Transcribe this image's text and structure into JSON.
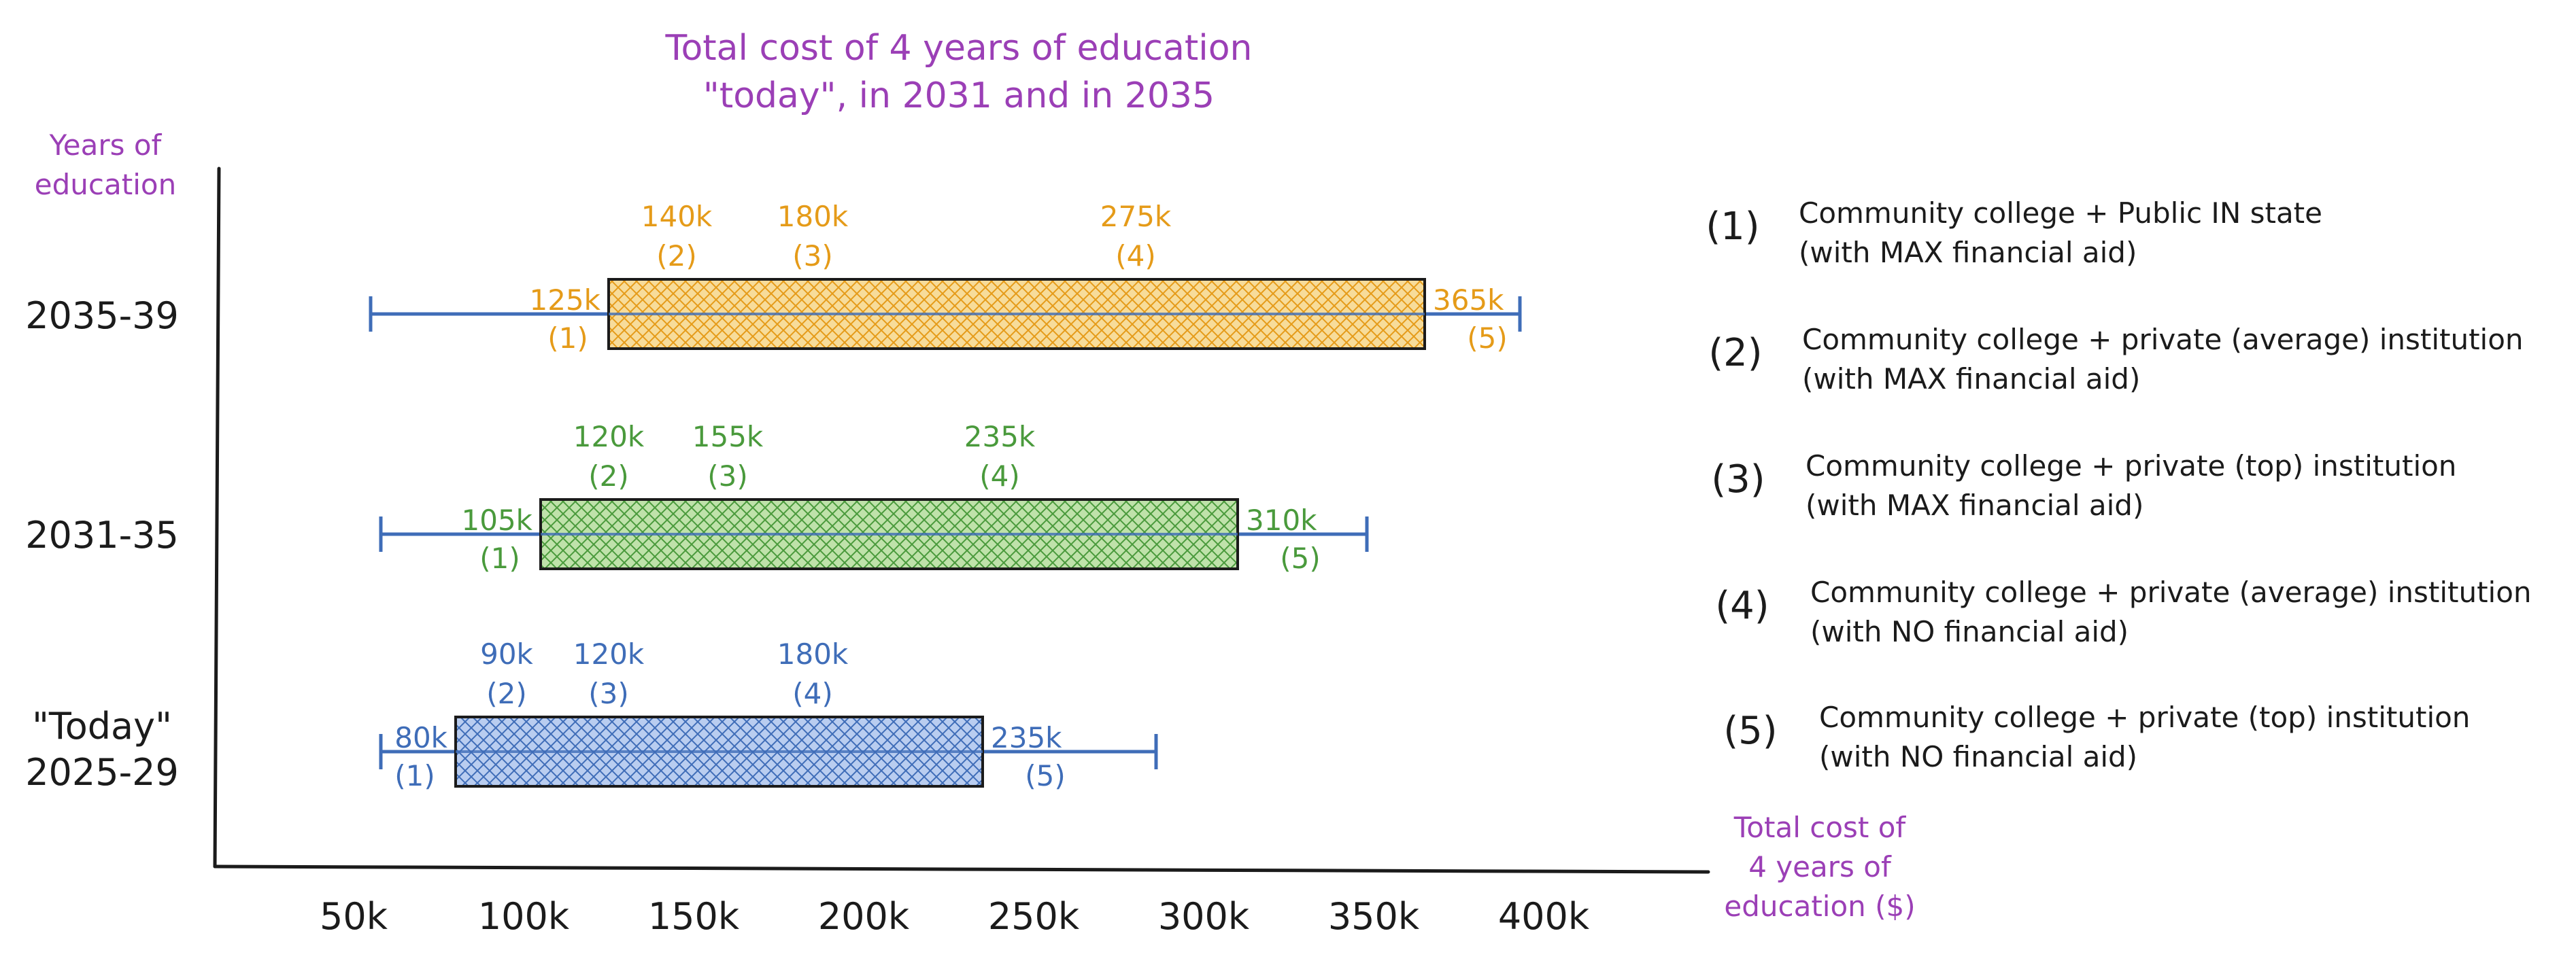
{
  "chart_data": {
    "type": "box",
    "title_lines": [
      "Total cost of 4 years of education",
      "\"today\", in 2031 and in 2035"
    ],
    "ylabel_lines": [
      "Years of",
      "education"
    ],
    "xlabel_lines": [
      "Total cost of",
      "4 years of",
      "education ($)"
    ],
    "xlim": [
      45,
      425
    ],
    "xticks": [
      50,
      100,
      150,
      200,
      250,
      300,
      350,
      400
    ],
    "xtick_labels": [
      "50k",
      "100k",
      "150k",
      "200k",
      "250k",
      "300k",
      "350k",
      "400k"
    ],
    "grid": false,
    "legend_position": "right",
    "series": [
      {
        "category_lines": [
          "2035-39"
        ],
        "color": "#e59b19",
        "fill": "#f7dc9a",
        "whisker_range": [
          55,
          393
        ],
        "values": [
          125,
          140,
          180,
          275,
          365
        ],
        "value_labels": [
          "125k",
          "140k",
          "180k",
          "275k",
          "365k"
        ],
        "marker_labels": [
          "(1)",
          "(2)",
          "(3)",
          "(4)",
          "(5)"
        ]
      },
      {
        "category_lines": [
          "2031-35"
        ],
        "color": "#4a9a3c",
        "fill": "#bfe2aa",
        "whisker_range": [
          58,
          348
        ],
        "values": [
          105,
          120,
          155,
          235,
          310
        ],
        "value_labels": [
          "105k",
          "120k",
          "155k",
          "235k",
          "310k"
        ],
        "marker_labels": [
          "(1)",
          "(2)",
          "(3)",
          "(4)",
          "(5)"
        ]
      },
      {
        "category_lines": [
          "\"Today\"",
          "2025-29"
        ],
        "color": "#3f6db8",
        "fill": "#b9cdf0",
        "whisker_range": [
          58,
          286
        ],
        "values": [
          80,
          90,
          120,
          180,
          235
        ],
        "value_labels": [
          "80k",
          "90k",
          "120k",
          "180k",
          "235k"
        ],
        "marker_labels": [
          "(1)",
          "(2)",
          "(3)",
          "(4)",
          "(5)"
        ]
      }
    ],
    "legend": [
      {
        "number": "(1)",
        "lines": [
          "Community college + Public IN state",
          "(with MAX financial aid)"
        ]
      },
      {
        "number": "(2)",
        "lines": [
          "Community college + private (average) institution",
          "(with MAX financial aid)"
        ]
      },
      {
        "number": "(3)",
        "lines": [
          "Community college + private (top) institution",
          "(with MAX financial aid)"
        ]
      },
      {
        "number": "(4)",
        "lines": [
          "Community college + private (average) institution",
          "(with NO financial aid)"
        ]
      },
      {
        "number": "(5)",
        "lines": [
          "Community college + private (top) institution",
          "(with NO financial aid)"
        ]
      }
    ]
  }
}
